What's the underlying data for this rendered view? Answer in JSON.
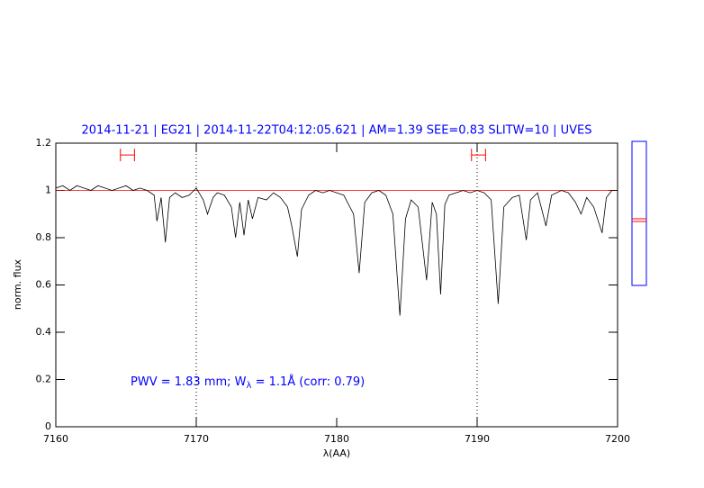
{
  "chart_data": {
    "type": "line",
    "title": "2014-11-21 | EG21 | 2014-11-22T04:12:05.621 | AM=1.39 SEE=0.83 SLITW=10 | UVES",
    "xlabel": "λ(AA)",
    "ylabel": "norm. flux",
    "annotation": {
      "text": "PWV = 1.83 mm; W",
      "subscript": "λ",
      "rest": " = 1.1Å (corr: 0.79)",
      "color": "#0000ff"
    },
    "x": [
      7160,
      7160.5,
      7161,
      7161.5,
      7162,
      7162.5,
      7163,
      7163.5,
      7164,
      7164.5,
      7165,
      7165.5,
      7166,
      7166.5,
      7167,
      7167.2,
      7167.5,
      7167.8,
      7168.1,
      7168.5,
      7169,
      7169.5,
      7170,
      7170.5,
      7170.8,
      7171.2,
      7171.5,
      7172,
      7172.5,
      7172.8,
      7173.1,
      7173.4,
      7173.7,
      7174,
      7174.4,
      7175,
      7175.5,
      7176,
      7176.5,
      7176.8,
      7177.2,
      7177.5,
      7178,
      7178.5,
      7179,
      7179.5,
      7180,
      7180.5,
      7181.2,
      7181.6,
      7182,
      7182.5,
      7183,
      7183.5,
      7184,
      7184.5,
      7184.9,
      7185.3,
      7185.8,
      7186.4,
      7186.8,
      7187.1,
      7187.4,
      7187.7,
      7188,
      7188.5,
      7189,
      7189.5,
      7190,
      7190.5,
      7191,
      7191.5,
      7191.9,
      7192.5,
      7193,
      7193.5,
      7193.8,
      7194.3,
      7194.9,
      7195.3,
      7196,
      7196.5,
      7197,
      7197.4,
      7197.8,
      7198.3,
      7198.9,
      7199.2,
      7199.6,
      7200
    ],
    "series": [
      {
        "color": "#000000",
        "values": [
          1.01,
          1.02,
          1.0,
          1.02,
          1.01,
          1.0,
          1.02,
          1.01,
          1.0,
          1.01,
          1.02,
          1.0,
          1.01,
          1.0,
          0.98,
          0.87,
          0.97,
          0.78,
          0.97,
          0.99,
          0.97,
          0.98,
          1.01,
          0.96,
          0.9,
          0.97,
          0.99,
          0.98,
          0.93,
          0.8,
          0.95,
          0.81,
          0.96,
          0.88,
          0.97,
          0.96,
          0.99,
          0.97,
          0.93,
          0.85,
          0.72,
          0.92,
          0.98,
          1.0,
          0.99,
          1.0,
          0.99,
          0.98,
          0.9,
          0.65,
          0.95,
          0.99,
          1.0,
          0.98,
          0.9,
          0.47,
          0.88,
          0.96,
          0.93,
          0.62,
          0.95,
          0.9,
          0.56,
          0.94,
          0.98,
          0.99,
          1.0,
          0.99,
          1.0,
          0.99,
          0.96,
          0.52,
          0.93,
          0.97,
          0.98,
          0.79,
          0.96,
          0.99,
          0.85,
          0.98,
          1.0,
          0.99,
          0.95,
          0.9,
          0.97,
          0.93,
          0.82,
          0.97,
          1.0,
          1.0
        ]
      }
    ],
    "reference_line": {
      "value": 1,
      "color": "#ff0000"
    },
    "vlines": [
      7170,
      7190
    ],
    "ranges": [
      [
        7164.6,
        7165.6
      ],
      [
        7189.6,
        7190.6
      ]
    ],
    "range_y": 1.15,
    "range_color": "#ff0000",
    "xlim": [
      7160,
      7200
    ],
    "ylim": [
      0,
      1.2
    ],
    "xticks": [
      7160,
      7170,
      7180,
      7190,
      7200
    ],
    "yticks": [
      0,
      0.2,
      0.4,
      0.6,
      0.8,
      1,
      1.2
    ]
  }
}
